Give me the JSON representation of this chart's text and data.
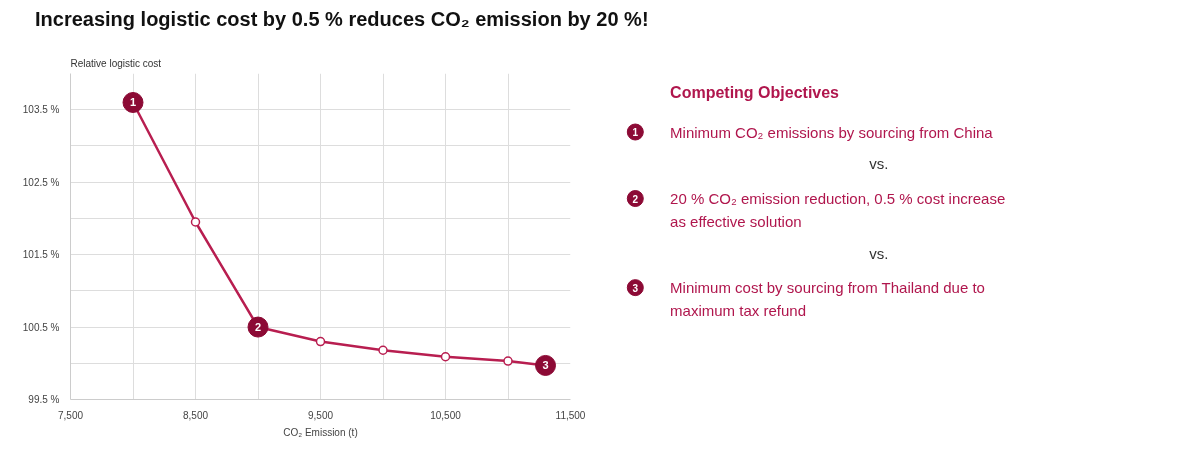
{
  "chart_data": [
    {
      "type": "line",
      "title": "Increasing logistic cost by 0.5 % reduces CO₂ emission by 20 %!",
      "ylabel": "Relative logistic cost",
      "xlabel": "CO₂ Emission (t)",
      "x": [
        8000,
        8500,
        9000,
        9500,
        10000,
        10500,
        11000,
        11300
      ],
      "values": [
        103.6,
        101.95,
        100.5,
        100.3,
        100.18,
        100.09,
        100.03,
        99.97
      ],
      "color": "#b81e50",
      "marker": "circle",
      "grid": true,
      "xlim": [
        7500,
        11500
      ],
      "ylim": [
        99.5,
        104
      ],
      "xticks": [
        {
          "value": 7500,
          "label": "7,500"
        },
        {
          "value": 8000,
          "label": null
        },
        {
          "value": 8500,
          "label": "8,500"
        },
        {
          "value": 9000,
          "label": null
        },
        {
          "value": 9500,
          "label": "9,500"
        },
        {
          "value": 10000,
          "label": null
        },
        {
          "value": 10500,
          "label": "10,500"
        },
        {
          "value": 11000,
          "label": null
        },
        {
          "value": 11500,
          "label": "11,500"
        }
      ],
      "yticks": [
        {
          "value": 99.5,
          "label": "99.5 %"
        },
        {
          "value": 100,
          "label": null
        },
        {
          "value": 100.5,
          "label": "100.5 %"
        },
        {
          "value": 101,
          "label": null
        },
        {
          "value": 101.5,
          "label": "101.5 %"
        },
        {
          "value": 102,
          "label": null
        },
        {
          "value": 102.5,
          "label": "102.5 %"
        },
        {
          "value": 103,
          "label": null
        },
        {
          "value": 103.5,
          "label": "103.5 %"
        }
      ],
      "annotations": [
        {
          "text": "1",
          "x": 8000,
          "y": 103.6
        },
        {
          "text": "2",
          "x": 9000,
          "y": 100.5
        },
        {
          "text": "3",
          "x": 11300,
          "y": 99.97
        }
      ]
    },
    {
      "type": "other",
      "title": "Competing Objectives",
      "annotations": [
        "1",
        "Minimum CO₂ emissions by sourcing from China",
        "vs.",
        "2",
        "20 % CO₂ emission reduction, 0.5 % cost increase as effective solution",
        "vs.",
        "3",
        "Minimum cost by sourcing from Thailand due to maximum tax refund"
      ]
    }
  ]
}
